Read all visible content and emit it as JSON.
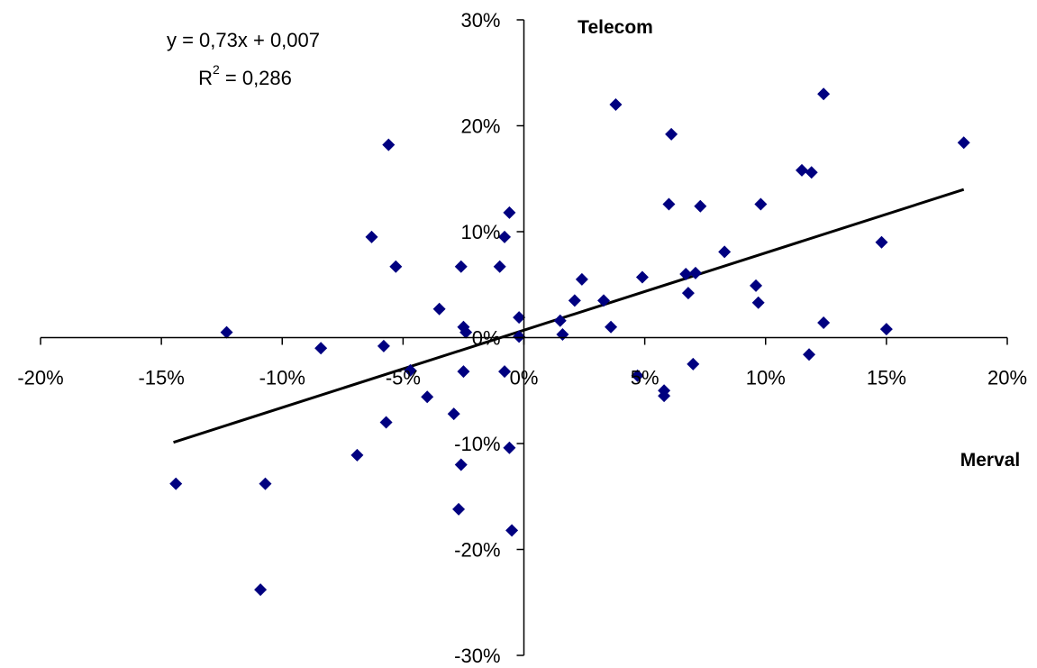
{
  "chart_data": {
    "type": "scatter",
    "title": "",
    "xlabel": "Merval",
    "ylabel": "Telecom",
    "xlim": [
      -0.2,
      0.2
    ],
    "ylim": [
      -0.3,
      0.3
    ],
    "x_ticks": [
      {
        "value": -0.2,
        "label": "-20%"
      },
      {
        "value": -0.15,
        "label": "-15%"
      },
      {
        "value": -0.1,
        "label": "-10%"
      },
      {
        "value": -0.05,
        "label": "-5%"
      },
      {
        "value": 0.0,
        "label": "0%"
      },
      {
        "value": 0.05,
        "label": "5%"
      },
      {
        "value": 0.1,
        "label": "10%"
      },
      {
        "value": 0.15,
        "label": "15%"
      },
      {
        "value": 0.2,
        "label": "20%"
      }
    ],
    "y_ticks": [
      {
        "value": 0.3,
        "label": "30%"
      },
      {
        "value": 0.2,
        "label": "20%"
      },
      {
        "value": 0.1,
        "label": "10%"
      },
      {
        "value": 0.0,
        "label": "0%"
      },
      {
        "value": -0.1,
        "label": "-10%"
      },
      {
        "value": -0.2,
        "label": "-20%"
      },
      {
        "value": -0.3,
        "label": "-30%"
      }
    ],
    "grid": false,
    "legend": "none",
    "marker_color": "#000080",
    "line_color": "#000000",
    "trendline": {
      "slope": 0.73,
      "intercept": 0.007,
      "x_range": [
        -0.145,
        0.182
      ],
      "equation": "y = 0,73x + 0,007",
      "r2_prefix": "R",
      "r2_exp": "2",
      "r2_value": " = 0,286"
    },
    "points": [
      {
        "x": -0.123,
        "y": 0.005
      },
      {
        "x": -0.084,
        "y": -0.01
      },
      {
        "x": -0.144,
        "y": -0.138
      },
      {
        "x": -0.107,
        "y": -0.138
      },
      {
        "x": -0.109,
        "y": -0.238
      },
      {
        "x": -0.069,
        "y": -0.111
      },
      {
        "x": -0.063,
        "y": 0.095
      },
      {
        "x": -0.058,
        "y": -0.008
      },
      {
        "x": -0.057,
        "y": -0.08
      },
      {
        "x": -0.056,
        "y": 0.182
      },
      {
        "x": -0.053,
        "y": 0.067
      },
      {
        "x": -0.047,
        "y": -0.031
      },
      {
        "x": -0.04,
        "y": -0.056
      },
      {
        "x": -0.035,
        "y": 0.027
      },
      {
        "x": -0.029,
        "y": -0.072
      },
      {
        "x": -0.026,
        "y": 0.067
      },
      {
        "x": -0.026,
        "y": -0.12
      },
      {
        "x": -0.027,
        "y": -0.162
      },
      {
        "x": -0.025,
        "y": 0.01
      },
      {
        "x": -0.024,
        "y": 0.005
      },
      {
        "x": -0.025,
        "y": -0.032
      },
      {
        "x": -0.01,
        "y": 0.067
      },
      {
        "x": -0.008,
        "y": 0.095
      },
      {
        "x": -0.006,
        "y": 0.118
      },
      {
        "x": -0.008,
        "y": -0.032
      },
      {
        "x": -0.006,
        "y": -0.104
      },
      {
        "x": -0.005,
        "y": -0.182
      },
      {
        "x": -0.002,
        "y": 0.019
      },
      {
        "x": -0.002,
        "y": 0.001
      },
      {
        "x": 0.015,
        "y": 0.016
      },
      {
        "x": 0.016,
        "y": 0.003
      },
      {
        "x": 0.021,
        "y": 0.035
      },
      {
        "x": 0.024,
        "y": 0.055
      },
      {
        "x": 0.033,
        "y": 0.035
      },
      {
        "x": 0.036,
        "y": 0.01
      },
      {
        "x": 0.038,
        "y": 0.22
      },
      {
        "x": 0.047,
        "y": -0.036
      },
      {
        "x": 0.049,
        "y": 0.057
      },
      {
        "x": 0.058,
        "y": -0.055
      },
      {
        "x": 0.058,
        "y": -0.05
      },
      {
        "x": 0.06,
        "y": 0.126
      },
      {
        "x": 0.061,
        "y": 0.192
      },
      {
        "x": 0.067,
        "y": 0.06
      },
      {
        "x": 0.068,
        "y": 0.042
      },
      {
        "x": 0.07,
        "y": -0.025
      },
      {
        "x": 0.071,
        "y": 0.061
      },
      {
        "x": 0.073,
        "y": 0.124
      },
      {
        "x": 0.083,
        "y": 0.081
      },
      {
        "x": 0.096,
        "y": 0.049
      },
      {
        "x": 0.097,
        "y": 0.033
      },
      {
        "x": 0.098,
        "y": 0.126
      },
      {
        "x": 0.115,
        "y": 0.158
      },
      {
        "x": 0.118,
        "y": -0.016
      },
      {
        "x": 0.119,
        "y": 0.156
      },
      {
        "x": 0.124,
        "y": 0.014
      },
      {
        "x": 0.124,
        "y": 0.23
      },
      {
        "x": 0.148,
        "y": 0.09
      },
      {
        "x": 0.15,
        "y": 0.008
      },
      {
        "x": 0.182,
        "y": 0.184
      }
    ]
  }
}
